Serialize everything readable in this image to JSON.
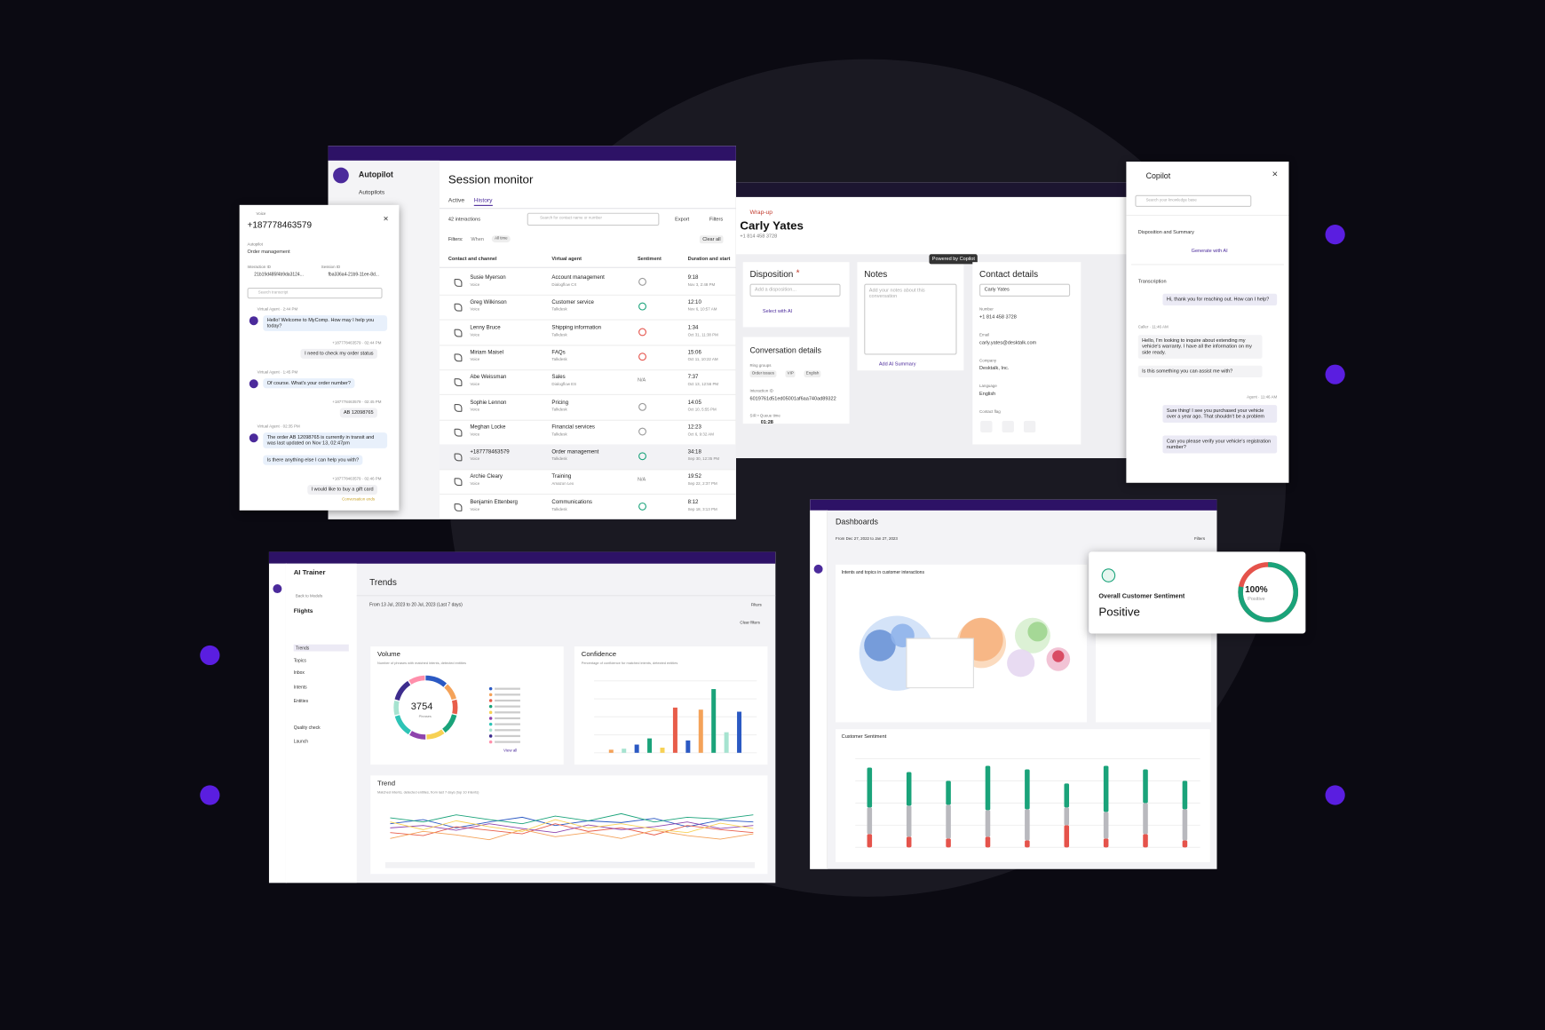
{
  "session_monitor": {
    "nav": {
      "section": "Autopilot",
      "item": "Autopilots"
    },
    "title": "Session monitor",
    "tabs": [
      "Active",
      "History"
    ],
    "count": "42 interactions",
    "search": "Search for contact name or number",
    "export": "Export",
    "filters": "Filters",
    "filter_label": "Filters:",
    "when": "When",
    "all_time": "All time",
    "clear": "Clear all",
    "columns": [
      "Contact and channel",
      "Virtual agent",
      "Sentiment",
      "Duration and start"
    ],
    "rows": [
      {
        "name": "Susie Myerson",
        "channel": "Voice",
        "agent": "Account management",
        "platform": "Dialogflow CX",
        "sentiment": "neutral",
        "duration": "9:18",
        "start": "Nov 3, 2:48 PM"
      },
      {
        "name": "Greg Wilkinson",
        "channel": "Voice",
        "agent": "Customer service",
        "platform": "Talkdesk",
        "sentiment": "positive",
        "duration": "12:10",
        "start": "Nov 6, 10:57 AM"
      },
      {
        "name": "Lenny Bruce",
        "channel": "Voice",
        "agent": "Shipping information",
        "platform": "Talkdesk",
        "sentiment": "negative",
        "duration": "1:34",
        "start": "Oct 31, 11:38 PM"
      },
      {
        "name": "Miriam Maisel",
        "channel": "Voice",
        "agent": "FAQs",
        "platform": "Talkdesk",
        "sentiment": "negative",
        "duration": "15:06",
        "start": "Oct 11, 10:22 AM"
      },
      {
        "name": "Abe Weissman",
        "channel": "Voice",
        "agent": "Sales",
        "platform": "Dialogflow ES",
        "sentiment": "N/A",
        "duration": "7:37",
        "start": "Oct 13, 12:56 PM"
      },
      {
        "name": "Sophie Lennon",
        "channel": "Voice",
        "agent": "Pricing",
        "platform": "Talkdesk",
        "sentiment": "neutral",
        "duration": "14:05",
        "start": "Oct 10, 5:55 PM"
      },
      {
        "name": "Meghan Locke",
        "channel": "Voice",
        "agent": "Financial services",
        "platform": "Talkdesk",
        "sentiment": "neutral",
        "duration": "12:23",
        "start": "Oct 6, 9:32 AM"
      },
      {
        "name": "+187778463579",
        "channel": "Voice",
        "agent": "Order management",
        "platform": "Talkdesk",
        "sentiment": "positive",
        "duration": "34:18",
        "start": "Sep 30, 12:35 PM"
      },
      {
        "name": "Archie Cleary",
        "channel": "Voice",
        "agent": "Training",
        "platform": "Amazon Lex",
        "sentiment": "N/A",
        "duration": "19:52",
        "start": "Sep 22, 2:37 PM"
      },
      {
        "name": "Benjamin Ettenberg",
        "channel": "Voice",
        "agent": "Communications",
        "platform": "Talkdesk",
        "sentiment": "positive",
        "duration": "8:12",
        "start": "Sep 18, 3:13 PM"
      }
    ]
  },
  "chat": {
    "channel": "Voice",
    "number": "+187778463579",
    "autopilot_label": "Autopilot",
    "autopilot": "Order management",
    "interaction_label": "Interaction ID",
    "interaction_id": "21b19d485f4b9da3124...",
    "session_label": "Session ID",
    "session_id": "fba336a4-21b9-11ee-8d...",
    "search": "Search transcript",
    "messages": [
      {
        "from": "bot",
        "meta": "Virtual Agent · 2:44 PM",
        "texts": [
          "Hello! Welcome to MyComp. How may I help you today?"
        ]
      },
      {
        "from": "user",
        "meta": "+187778463579 · 02:44 PM",
        "texts": [
          "I need to check my order status"
        ]
      },
      {
        "from": "bot",
        "meta": "Virtual Agent · 1:45 PM",
        "texts": [
          "Of course. What's your order number?"
        ]
      },
      {
        "from": "user",
        "meta": "+187778463579 · 02:45 PM",
        "texts": [
          "AB 12098765"
        ]
      },
      {
        "from": "bot",
        "meta": "Virtual Agent · 02:35 PM",
        "texts": [
          "The order AB 12098765 is currently in transit and was last updated on Nov 13, 02:47pm",
          "Is there anything else I can help you with?"
        ]
      },
      {
        "from": "user",
        "meta": "+187778463579 · 02:46 PM",
        "texts": [
          "I would like to buy a gift card"
        ]
      }
    ],
    "end": "Conversation ends"
  },
  "wrapup": {
    "badge": "Wrap-up",
    "name": "Carly Yates",
    "phone": "+1 814 458 3728",
    "disposition": {
      "title": "Disposition",
      "required": "*",
      "placeholder": "Add a disposition...",
      "ai": "Select with AI"
    },
    "notes": {
      "title": "Notes",
      "placeholder": "Add your notes about this conversation",
      "ai": "Add AI Summary",
      "tooltip": "Powered by Copilot"
    },
    "contact": {
      "title": "Contact details",
      "select": "Carly Yates",
      "fields": [
        {
          "label": "Number",
          "value": "+1 814 458 3728"
        },
        {
          "label": "Email",
          "value": "carly.yates@desktalk.com"
        },
        {
          "label": "Company",
          "value": "Desktalk, Inc."
        },
        {
          "label": "Language",
          "value": "English"
        }
      ],
      "flag": "Contact flag"
    },
    "conversation": {
      "title": "Conversation details",
      "ring_label": "Ring groups",
      "tags": [
        "Order issues",
        "VIP",
        "English"
      ],
      "interaction_label": "Interaction ID",
      "interaction_id": "6019761d51ed05001af6aa740ad89322",
      "queue_label": "SIR • Queue time",
      "queue_time": "01:28"
    }
  },
  "copilot": {
    "title": "Copilot",
    "search": "Search your knowledge base",
    "section": "Disposition and Summary",
    "generate": "Generate with AI",
    "transcription": "Transcription",
    "messages": [
      {
        "from": "agent",
        "meta": null,
        "texts": [
          "Hi, thank you for reaching out. How can I help?"
        ]
      },
      {
        "from": "caller",
        "meta": "Caller · 11:46 AM",
        "texts": [
          "Hello, I'm looking to inquire about extending my vehicle's warranty. I have all the information on my side ready.",
          "Is this something you can assist me with?"
        ]
      },
      {
        "from": "agent",
        "meta": "Agent · 11:46 AM",
        "texts": [
          "Sure thing! I see you purchased your vehicle over a year ago. That shouldn't be a problem",
          "Can you please verify your vehicle's registration number?"
        ]
      }
    ]
  },
  "ai_trainer": {
    "app": "AI Trainer",
    "back": "Back to Models",
    "model": "Flights",
    "nav": [
      "Trends",
      "Topics",
      "Inbox",
      "Intents",
      "Entities",
      "Quality check",
      "Launch"
    ],
    "title": "Trends",
    "range": "From 13 Jul, 2023 to 20 Jul, 2023 (Last 7 days)",
    "filters": "Filters",
    "clear": "Clear filters",
    "volume": {
      "title": "Volume",
      "subtitle": "Number of phrases with matched intents, detected entities",
      "total": "3754",
      "unit": "Phrases",
      "link": "View all",
      "segments": [
        {
          "color": "#2b59c3",
          "value": 12
        },
        {
          "color": "#f4a259",
          "value": 9
        },
        {
          "color": "#e85d4a",
          "value": 8
        },
        {
          "color": "#1aa37a",
          "value": 11
        },
        {
          "color": "#f7d154",
          "value": 10
        },
        {
          "color": "#8e44ad",
          "value": 9
        },
        {
          "color": "#2ec4b6",
          "value": 12
        },
        {
          "color": "#a6e3d0",
          "value": 8
        },
        {
          "color": "#3d2c8d",
          "value": 12
        },
        {
          "color": "#ff8fab",
          "value": 9
        }
      ]
    },
    "confidence": {
      "title": "Confidence",
      "subtitle": "Percentage of confidence for matched intents, detected entities",
      "ylim": [
        0,
        70
      ],
      "values": [
        3,
        4,
        8,
        14,
        5,
        44,
        12,
        42,
        62,
        20,
        40
      ],
      "colors": [
        "#f4a259",
        "#a6e3d0",
        "#2b59c3",
        "#1aa37a",
        "#f7d154",
        "#e85d4a",
        "#2b59c3",
        "#f4a259",
        "#1aa37a",
        "#a6e3d0",
        "#2b59c3"
      ]
    },
    "trend": {
      "title": "Trend",
      "subtitle": "Matched intents, detected entities, from last 7 days (top 10 intents)",
      "ylim": [
        0,
        100
      ],
      "series": [
        {
          "color": "#2b59c3",
          "values": [
            55,
            62,
            48,
            58,
            66,
            52,
            60,
            57,
            64,
            50,
            61,
            58
          ]
        },
        {
          "color": "#e85d4a",
          "values": [
            40,
            35,
            50,
            44,
            38,
            55,
            42,
            48,
            36,
            52,
            45,
            40
          ]
        },
        {
          "color": "#1aa37a",
          "values": [
            65,
            58,
            70,
            62,
            55,
            68,
            60,
            72,
            58,
            66,
            63,
            70
          ]
        },
        {
          "color": "#f4a259",
          "values": [
            30,
            42,
            36,
            28,
            45,
            33,
            40,
            30,
            44,
            35,
            29,
            38
          ]
        },
        {
          "color": "#8e44ad",
          "values": [
            48,
            52,
            44,
            55,
            47,
            40,
            53,
            45,
            50,
            58,
            47,
            52
          ]
        },
        {
          "color": "#f7d154",
          "values": [
            58,
            45,
            60,
            50,
            42,
            62,
            48,
            55,
            46,
            40,
            56,
            47
          ]
        }
      ]
    }
  },
  "dashboards": {
    "title": "Dashboards",
    "range": "From Dec 27, 2022 to Jan 27, 2023",
    "filters": "Filters",
    "intents_title": "Intents and topics in customer interactions",
    "sentiment": {
      "title": "Customer Sentiment",
      "ylim": [
        0,
        100
      ],
      "series": [
        {
          "color": "#e5534b",
          "values": [
            15,
            12,
            10,
            12,
            8,
            25,
            10,
            15,
            8
          ]
        },
        {
          "color": "#b9b9be",
          "values": [
            30,
            35,
            38,
            30,
            35,
            20,
            30,
            35,
            35
          ]
        },
        {
          "color": "#1aa37a",
          "values": [
            45,
            38,
            27,
            50,
            45,
            27,
            52,
            38,
            32
          ]
        }
      ]
    }
  },
  "sentiment_card": {
    "title": "Overall Customer Sentiment",
    "value": "Positive",
    "gauge": {
      "value": 100,
      "label": "100%"
    },
    "gauge_caption": "Positive"
  }
}
